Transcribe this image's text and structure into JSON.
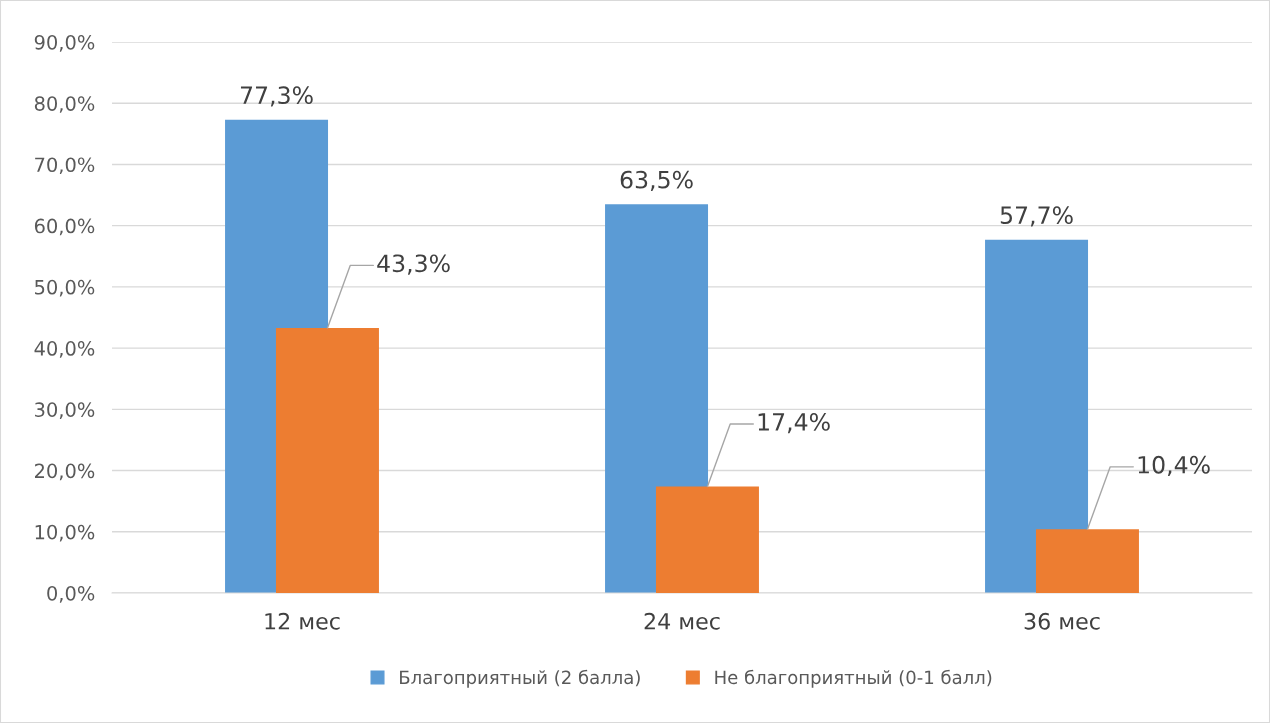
{
  "chart_data": {
    "type": "bar",
    "categories": [
      "12 мес",
      "24 мес",
      "36 мес"
    ],
    "series": [
      {
        "name": "Благоприятный (2 балла)",
        "color": "#5b9bd5",
        "values": [
          77.3,
          63.5,
          57.7
        ],
        "value_labels": [
          "77,3%",
          "63,5%",
          "57,7%"
        ]
      },
      {
        "name": "Не благоприятный (0-1 балл)",
        "color": "#ed7d31",
        "values": [
          43.3,
          17.4,
          10.4
        ],
        "value_labels": [
          "43,3%",
          "17,4%",
          "10,4%"
        ]
      }
    ],
    "ylim": [
      0,
      90
    ],
    "yticks": [
      {
        "value": 0,
        "label": "0,0%"
      },
      {
        "value": 10,
        "label": "10,0%"
      },
      {
        "value": 20,
        "label": "20,0%"
      },
      {
        "value": 30,
        "label": "30,0%"
      },
      {
        "value": 40,
        "label": "40,0%"
      },
      {
        "value": 50,
        "label": "50,0%"
      },
      {
        "value": 60,
        "label": "60,0%"
      },
      {
        "value": 70,
        "label": "70,0%"
      },
      {
        "value": 80,
        "label": "80,0%"
      },
      {
        "value": 90,
        "label": "90,0%"
      }
    ],
    "grid": "y",
    "legend": "bottom"
  }
}
